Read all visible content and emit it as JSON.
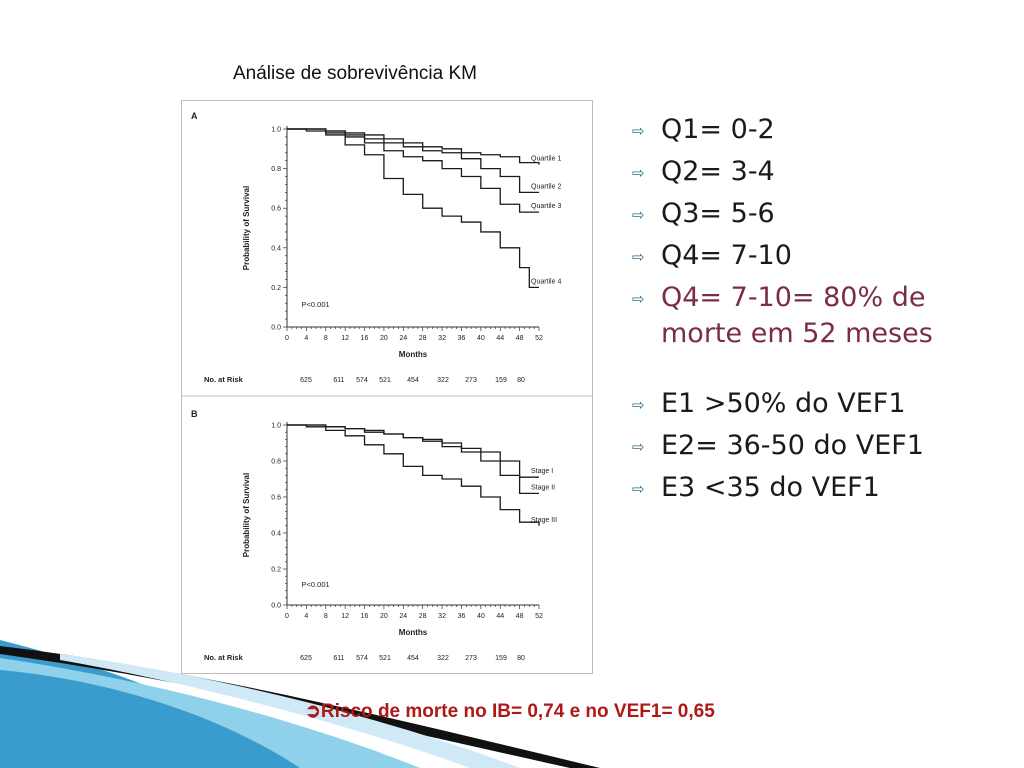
{
  "slide": {
    "title": "Análise de sobrevivência KM",
    "footer_arrow": "➲",
    "footer_text": "Risco de morte no IB= 0,74 e no VEF1= 0,65",
    "bullet_icon": "hollow-right-arrow-icon",
    "bullets": [
      {
        "text": "Q1= 0-2"
      },
      {
        "text": "Q2= 3-4"
      },
      {
        "text": "Q3= 5-6"
      },
      {
        "text": "Q4= 7-10"
      },
      {
        "text": "Q4= 7-10= 80% de morte em 52 meses",
        "highlight_color": "#7b2c4a"
      },
      {
        "text": "E1 >50% do VEF1"
      },
      {
        "text": "E2= 36-50 do VEF1"
      },
      {
        "text": "E3 <35 do VEF1"
      }
    ]
  },
  "chart_data": [
    {
      "type": "line",
      "panel": "A",
      "ylabel": "Probability of Survival",
      "xlabel": "Months",
      "xlim": [
        0,
        52
      ],
      "ylim": [
        0,
        1
      ],
      "x_ticks": [
        0,
        4,
        8,
        12,
        16,
        20,
        24,
        28,
        32,
        36,
        40,
        44,
        48,
        52
      ],
      "y_ticks": [
        "0.0",
        "0.2",
        "0.4",
        "0.6",
        "0.8",
        "1.0"
      ],
      "annotation": "P<0.001",
      "risk_label": "No. at Risk",
      "risk_counts": [
        "625",
        "611",
        "574",
        "521",
        "454",
        "322",
        "273",
        "159",
        "80"
      ],
      "series": [
        {
          "name": "Quartile 1",
          "x": [
            0,
            4,
            8,
            12,
            16,
            20,
            24,
            28,
            32,
            36,
            40,
            44,
            48,
            52
          ],
          "y": [
            1.0,
            1.0,
            0.99,
            0.98,
            0.97,
            0.95,
            0.93,
            0.91,
            0.9,
            0.88,
            0.87,
            0.86,
            0.83,
            0.82
          ]
        },
        {
          "name": "Quartile 2",
          "x": [
            0,
            4,
            8,
            12,
            16,
            20,
            24,
            28,
            32,
            36,
            40,
            44,
            48,
            52
          ],
          "y": [
            1.0,
            1.0,
            0.99,
            0.97,
            0.95,
            0.93,
            0.91,
            0.89,
            0.88,
            0.85,
            0.8,
            0.76,
            0.68,
            0.68
          ]
        },
        {
          "name": "Quartile 3",
          "x": [
            0,
            4,
            8,
            12,
            16,
            20,
            24,
            28,
            32,
            36,
            40,
            44,
            48,
            52
          ],
          "y": [
            1.0,
            1.0,
            0.98,
            0.96,
            0.93,
            0.89,
            0.86,
            0.84,
            0.8,
            0.76,
            0.7,
            0.62,
            0.58,
            0.58
          ]
        },
        {
          "name": "Quartile 4",
          "x": [
            0,
            4,
            8,
            12,
            16,
            20,
            24,
            28,
            32,
            36,
            40,
            44,
            48,
            50,
            52
          ],
          "y": [
            1.0,
            0.99,
            0.97,
            0.92,
            0.87,
            0.75,
            0.67,
            0.6,
            0.56,
            0.53,
            0.48,
            0.4,
            0.3,
            0.2,
            0.2
          ]
        }
      ]
    },
    {
      "type": "line",
      "panel": "B",
      "ylabel": "Probability of Survival",
      "xlabel": "Months",
      "xlim": [
        0,
        52
      ],
      "ylim": [
        0,
        1
      ],
      "x_ticks": [
        0,
        4,
        8,
        12,
        16,
        20,
        24,
        28,
        32,
        36,
        40,
        44,
        48,
        52
      ],
      "y_ticks": [
        "0.0",
        "0.2",
        "0.4",
        "0.6",
        "0.8",
        "1.0"
      ],
      "annotation": "P<0.001",
      "risk_label": "No. at Risk",
      "risk_counts": [
        "625",
        "611",
        "574",
        "521",
        "454",
        "322",
        "273",
        "159",
        "80"
      ],
      "series": [
        {
          "name": "Stage I",
          "x": [
            0,
            4,
            8,
            12,
            16,
            20,
            24,
            28,
            32,
            36,
            40,
            44,
            48,
            52
          ],
          "y": [
            1.0,
            1.0,
            0.99,
            0.98,
            0.97,
            0.95,
            0.93,
            0.92,
            0.9,
            0.87,
            0.85,
            0.8,
            0.71,
            0.71
          ]
        },
        {
          "name": "Stage II",
          "x": [
            0,
            4,
            8,
            12,
            16,
            20,
            24,
            28,
            32,
            36,
            40,
            44,
            48,
            52
          ],
          "y": [
            1.0,
            1.0,
            0.99,
            0.98,
            0.96,
            0.95,
            0.93,
            0.91,
            0.88,
            0.85,
            0.8,
            0.72,
            0.62,
            0.62
          ]
        },
        {
          "name": "Stage III",
          "x": [
            0,
            4,
            8,
            12,
            16,
            20,
            24,
            28,
            32,
            36,
            40,
            44,
            48,
            52
          ],
          "y": [
            1.0,
            0.99,
            0.97,
            0.94,
            0.89,
            0.84,
            0.77,
            0.72,
            0.7,
            0.66,
            0.6,
            0.53,
            0.46,
            0.44
          ]
        }
      ]
    }
  ]
}
